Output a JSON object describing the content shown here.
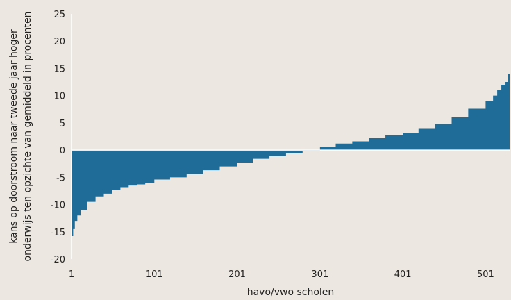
{
  "chart_data": {
    "type": "bar",
    "title": "",
    "xlabel": "havo/vwo scholen",
    "ylabel_lines": [
      "kans op doorstroom naar tweede jaar hoger",
      "onderwijs ten opzichte van gemiddeld in procenten"
    ],
    "x_range": [
      1,
      530
    ],
    "x_ticks": [
      1,
      101,
      201,
      301,
      401,
      501
    ],
    "ylim": [
      -20,
      25
    ],
    "y_ticks": [
      -20,
      -15,
      -10,
      -5,
      0,
      5,
      10,
      15,
      20,
      25
    ],
    "grid": false,
    "bar_color": "#1f6c98",
    "series": [
      {
        "x": [
          1,
          3,
          5,
          8,
          12,
          20,
          30,
          40,
          50,
          60,
          70,
          80,
          90,
          101,
          120,
          140,
          160,
          180,
          201,
          220,
          240,
          260,
          280,
          301,
          320,
          340,
          360,
          380,
          401,
          420,
          440,
          460,
          480,
          501,
          510,
          515,
          520,
          525,
          528,
          530
        ],
        "values": [
          -15.8,
          -14.5,
          -13,
          -12,
          -11,
          -9.5,
          -8.5,
          -8,
          -7.3,
          -6.8,
          -6.5,
          -6.3,
          -6,
          -5.4,
          -5,
          -4.4,
          -3.7,
          -3,
          -2.3,
          -1.6,
          -1.1,
          -0.6,
          -0.2,
          0.6,
          1.2,
          1.6,
          2.2,
          2.7,
          3.2,
          3.9,
          4.8,
          6,
          7.6,
          9,
          10,
          11,
          12,
          12.5,
          14,
          15
        ]
      }
    ]
  }
}
